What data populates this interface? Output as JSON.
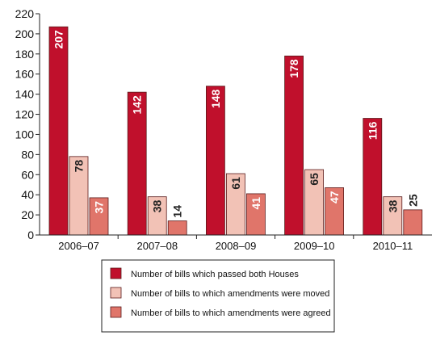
{
  "chart_data": {
    "type": "bar",
    "categories": [
      "2006–07",
      "2007–08",
      "2008–09",
      "2009–10",
      "2010–11"
    ],
    "series": [
      {
        "name": "Number of bills which passed both Houses",
        "color": "#c0102c",
        "label_color": "#ffffff",
        "values": [
          207,
          142,
          148,
          178,
          116
        ]
      },
      {
        "name": "Number of bills to which amendments were moved",
        "color": "#f2c2b6",
        "label_color": "#222222",
        "values": [
          78,
          38,
          61,
          65,
          38
        ]
      },
      {
        "name": "Number of bills to which amendments were agreed",
        "color": "#e0756a",
        "label_color": "#ffffff",
        "values": [
          37,
          14,
          41,
          47,
          25
        ]
      }
    ],
    "ylim": [
      0,
      220
    ],
    "yticks": [
      0,
      20,
      40,
      60,
      80,
      100,
      120,
      140,
      160,
      180,
      200,
      220
    ],
    "legend_position": "bottom"
  }
}
